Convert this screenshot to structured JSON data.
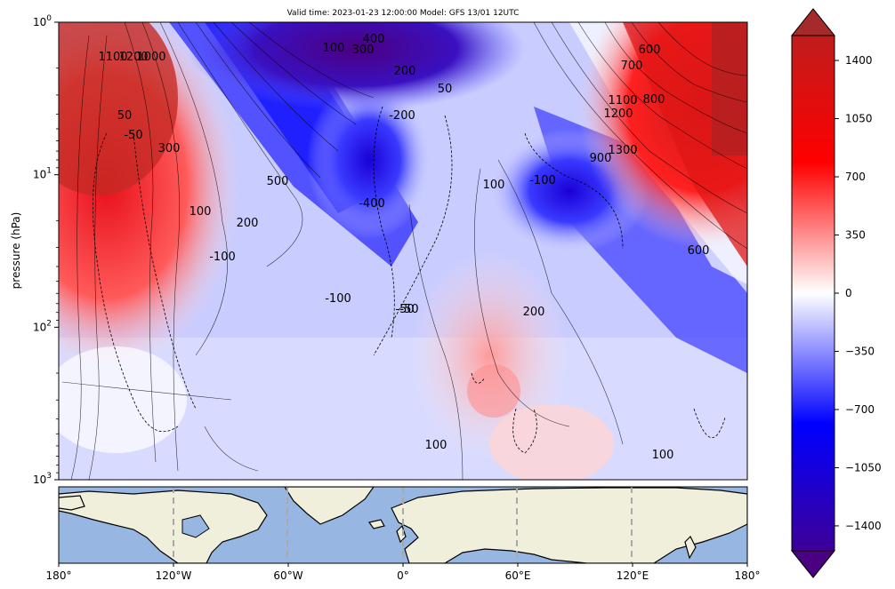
{
  "chart_data": [
    {
      "type": "heatmap",
      "title": "Valid time: 2023-01-23 12:00:00 Model: GFS 13/01 12UTC",
      "xlabel": "",
      "ylabel": "pressure (hPa)",
      "ylim": [
        1000,
        1
      ],
      "yscale": "log",
      "y_ticks": [
        "10^0",
        "10^1",
        "10^2",
        "10^3"
      ],
      "y_tick_values": [
        1,
        10,
        100,
        1000
      ],
      "xlim": [
        -180,
        180
      ],
      "x_ticks": [
        "180°",
        "120°W",
        "60°W",
        "0°",
        "60°E",
        "120°E",
        "180°"
      ],
      "x_tick_values": [
        -180,
        -120,
        -60,
        0,
        60,
        120,
        180
      ],
      "contour_labels": [
        "100",
        "400",
        "300",
        "200",
        "500",
        "1000",
        "1100",
        "1200",
        "50",
        "-50",
        "-200",
        "-400",
        "300",
        "100",
        "600",
        "700",
        "800",
        "1300",
        "900",
        "-100",
        "-100",
        "-50",
        "200",
        "200",
        "100",
        "600",
        "50",
        "-100",
        "-50",
        "100",
        "100",
        "1100",
        "1200"
      ],
      "colorbar": {
        "ticks": [
          "1400",
          "1050",
          "700",
          "350",
          "0",
          "−350",
          "−700",
          "−1050",
          "−1400"
        ],
        "tick_values": [
          1400,
          1050,
          700,
          350,
          0,
          -350,
          -700,
          -1050,
          -1400
        ],
        "range": [
          -1550,
          1550
        ],
        "colors": [
          "#4b0082",
          "#0000ff",
          "#ffffff",
          "#ff0000",
          "#b22222"
        ]
      }
    },
    {
      "type": "map",
      "x_ticks": [
        "180°",
        "120°W",
        "60°W",
        "0°",
        "60°E",
        "120°E",
        "180°"
      ],
      "x_tick_values": [
        -180,
        -120,
        -60,
        0,
        60,
        120,
        180
      ],
      "ocean_color": "#97b6e1",
      "land_color": "#efefdb",
      "gridline_color": "#a9a9a9"
    }
  ]
}
